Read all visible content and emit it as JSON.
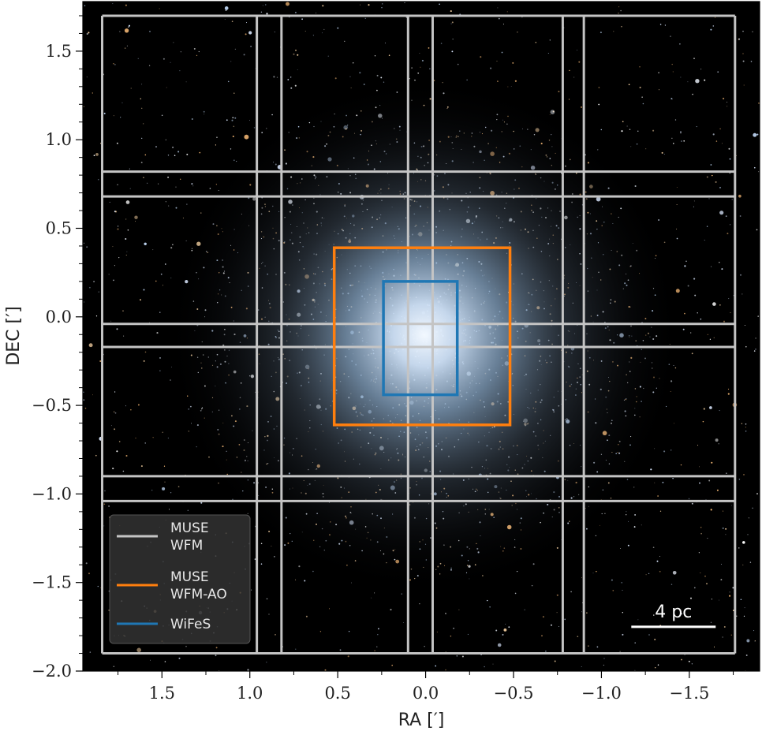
{
  "chart_data": {
    "type": "scatter",
    "title": "",
    "xlabel": "RA [′]",
    "ylabel": "DEC [′]",
    "xlim": [
      1.95,
      -1.9
    ],
    "ylim": [
      -2.0,
      1.78
    ],
    "x_reversed": true,
    "x_ticks": [
      1.5,
      1.0,
      0.5,
      0.0,
      -0.5,
      -1.0,
      -1.5
    ],
    "x_tick_labels": [
      "1.5",
      "1.0",
      "0.5",
      "0.0",
      "−0.5",
      "−1.0",
      "−1.5"
    ],
    "y_ticks": [
      1.5,
      1.0,
      0.5,
      0.0,
      -0.5,
      -1.0,
      -1.5,
      -2.0
    ],
    "y_tick_labels": [
      "1.5",
      "1.0",
      "0.5",
      "0.0",
      "−0.5",
      "−1.0",
      "−1.5",
      "−2.0"
    ],
    "background": "star cluster image",
    "grid": false,
    "legend_position": "bottom-left",
    "footprints": [
      {
        "name": "MUSE WFM",
        "legend_lines": [
          "MUSE",
          "WFM"
        ],
        "color": "#c4c4c4",
        "rects": [
          [
            0.96,
            0.82,
            1.84,
            1.7
          ],
          [
            0.96,
            0.82,
            0.68,
            1.84
          ],
          [
            0.96,
            0.82,
            -0.04,
            0.82
          ],
          [
            0.96,
            0.82,
            -1.04,
            -0.9
          ],
          [
            -0.78,
            -0.9,
            -1.9,
            1.7
          ],
          [
            -0.78,
            -0.9,
            -0.17,
            1.7
          ],
          [
            0.1,
            -0.04,
            -1.9,
            1.7
          ],
          [
            -0.78,
            -0.9,
            -0.17,
            1.7
          ],
          [
            1.84,
            -1.76,
            0.68,
            0.82
          ],
          [
            1.84,
            -1.76,
            -0.17,
            -0.04
          ],
          [
            1.84,
            -1.76,
            -1.04,
            -0.9
          ],
          [
            1.84,
            -1.76,
            -1.9,
            1.7
          ]
        ],
        "x_edges": [
          1.84,
          0.96,
          0.82,
          0.1,
          -0.04,
          -0.78,
          -0.9,
          -1.76
        ],
        "y_edges": [
          1.7,
          0.82,
          0.68,
          -0.04,
          -0.17,
          -0.9,
          -1.04,
          -1.9
        ]
      },
      {
        "name": "MUSE WFM-AO",
        "legend_lines": [
          "MUSE",
          "WFM-AO"
        ],
        "color": "#ff7f0e",
        "x_range": [
          0.52,
          -0.48
        ],
        "y_range": [
          -0.61,
          0.39
        ]
      },
      {
        "name": "WiFeS",
        "legend_lines": [
          "WiFeS"
        ],
        "color": "#1f77b4",
        "x_range": [
          0.24,
          -0.18
        ],
        "y_range": [
          -0.44,
          0.2
        ]
      }
    ],
    "scalebar": {
      "label": "4 pc",
      "x_range": [
        -1.17,
        -1.65
      ],
      "y": -1.75,
      "color": "#ffffff"
    }
  }
}
